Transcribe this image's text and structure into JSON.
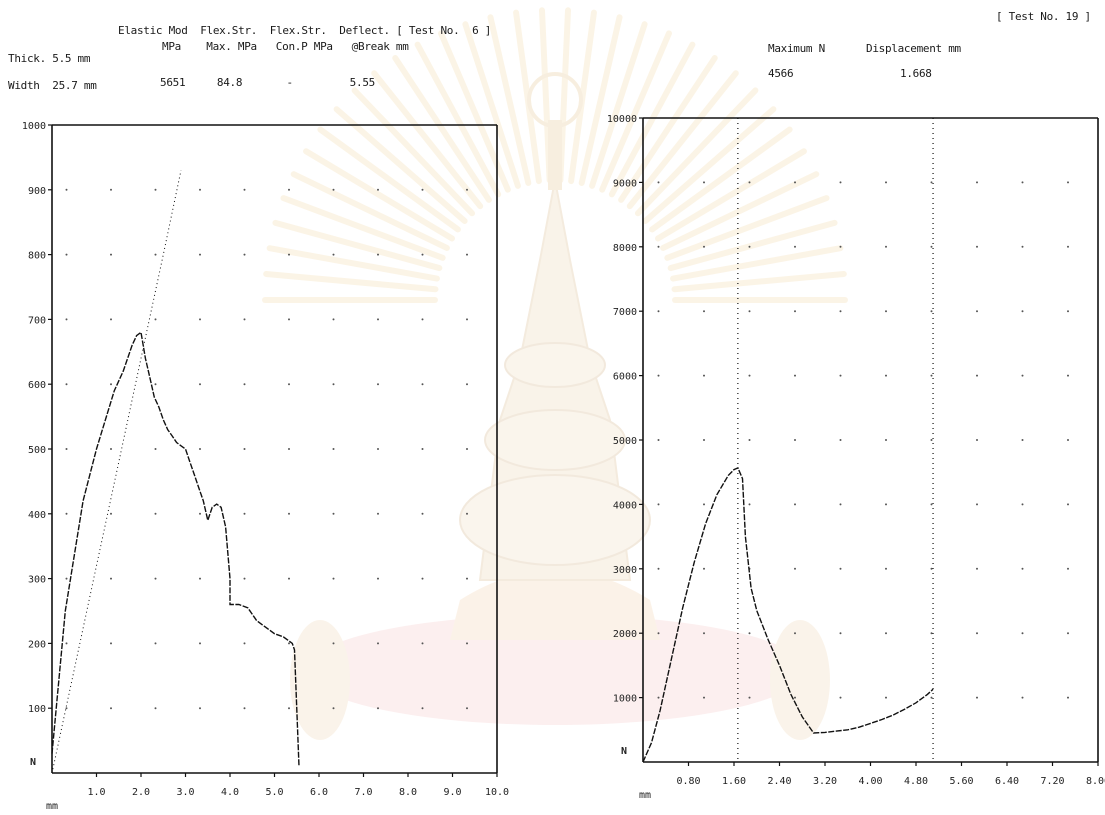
{
  "left_header": {
    "row1": "Elastic Mod  Flex.Str.  Flex.Str.  Deflect. [ Test No.  6 ]",
    "row2_label": "Thick. 5.5 mm",
    "row2_units": "MPa    Max. MPa   Con.P MPa   @Break mm",
    "row3_label": "Width  25.7 mm",
    "row3_values": "5651     84.8       -         5.55"
  },
  "right_header": {
    "test_no": "[ Test No. 19 ]",
    "col1_label": "Maximum N",
    "col2_label": "Displacement mm",
    "col1_value": "4566",
    "col2_value": "1.668"
  },
  "chart_data": [
    {
      "type": "line",
      "y_unit_label": "N",
      "x_unit_label": "mm",
      "xlim": [
        0,
        10
      ],
      "ylim": [
        0,
        1000
      ],
      "x_ticks": [
        "1.0",
        "2.0",
        "3.0",
        "4.0",
        "5.0",
        "6.0",
        "7.0",
        "8.0",
        "9.0",
        "10.0"
      ],
      "y_ticks": [
        "100",
        "200",
        "300",
        "400",
        "500",
        "600",
        "700",
        "800",
        "900",
        "1000"
      ],
      "grid": "dotted",
      "series": [
        {
          "style": "solid",
          "x": [
            0.0,
            0.3,
            0.7,
            1.0,
            1.2,
            1.4,
            1.6,
            1.8,
            1.9,
            2.0,
            2.1,
            2.2,
            2.3,
            2.4,
            2.5,
            2.6,
            2.7,
            2.8,
            2.9,
            3.0,
            3.1,
            3.2,
            3.3,
            3.4,
            3.5,
            3.6,
            3.7,
            3.8,
            3.9,
            4.0,
            4.0,
            4.2,
            4.4,
            4.6,
            4.8,
            5.0,
            5.2,
            5.4,
            5.45,
            5.55
          ],
          "y": [
            30,
            250,
            420,
            500,
            545,
            590,
            620,
            660,
            675,
            680,
            640,
            610,
            580,
            565,
            545,
            530,
            520,
            510,
            505,
            500,
            480,
            460,
            440,
            420,
            390,
            410,
            415,
            410,
            380,
            300,
            260,
            260,
            255,
            235,
            225,
            215,
            210,
            200,
            190,
            10
          ]
        },
        {
          "style": "dotted",
          "x": [
            0.0,
            0.5,
            1.0,
            1.5,
            2.0,
            2.5,
            2.9
          ],
          "y": [
            0,
            160,
            320,
            480,
            640,
            800,
            930
          ]
        }
      ]
    },
    {
      "type": "line",
      "y_unit_label": "N",
      "x_unit_label": "mm",
      "xlim": [
        0,
        8
      ],
      "ylim": [
        0,
        10000
      ],
      "x_ticks": [
        "0.80",
        "1.60",
        "2.40",
        "3.20",
        "4.00",
        "4.80",
        "5.60",
        "6.40",
        "7.20",
        "8.00"
      ],
      "y_ticks": [
        "1000",
        "2000",
        "3000",
        "4000",
        "5000",
        "6000",
        "7000",
        "8000",
        "9000",
        "10000"
      ],
      "grid": "dotted",
      "series": [
        {
          "style": "solid",
          "x": [
            0.0,
            0.15,
            0.3,
            0.5,
            0.7,
            0.9,
            1.1,
            1.3,
            1.5,
            1.6,
            1.668,
            1.75,
            1.8,
            1.9,
            2.0,
            2.2,
            2.4,
            2.6,
            2.8,
            3.0,
            3.2,
            3.4,
            3.6,
            3.8,
            4.0,
            4.2,
            4.4,
            4.6,
            4.8,
            5.0,
            5.1
          ],
          "y": [
            0,
            300,
            800,
            1600,
            2400,
            3100,
            3700,
            4150,
            4450,
            4540,
            4566,
            4400,
            3500,
            2700,
            2350,
            1900,
            1500,
            1050,
            700,
            450,
            460,
            480,
            500,
            540,
            600,
            660,
            730,
            820,
            920,
            1050,
            1130
          ]
        }
      ],
      "markers": [
        {
          "style": "dotted-vertical",
          "x": 1.668
        },
        {
          "style": "dotted-vertical",
          "x": 5.1
        }
      ]
    }
  ],
  "watermark": {
    "description_color": "#f1c4c4"
  }
}
